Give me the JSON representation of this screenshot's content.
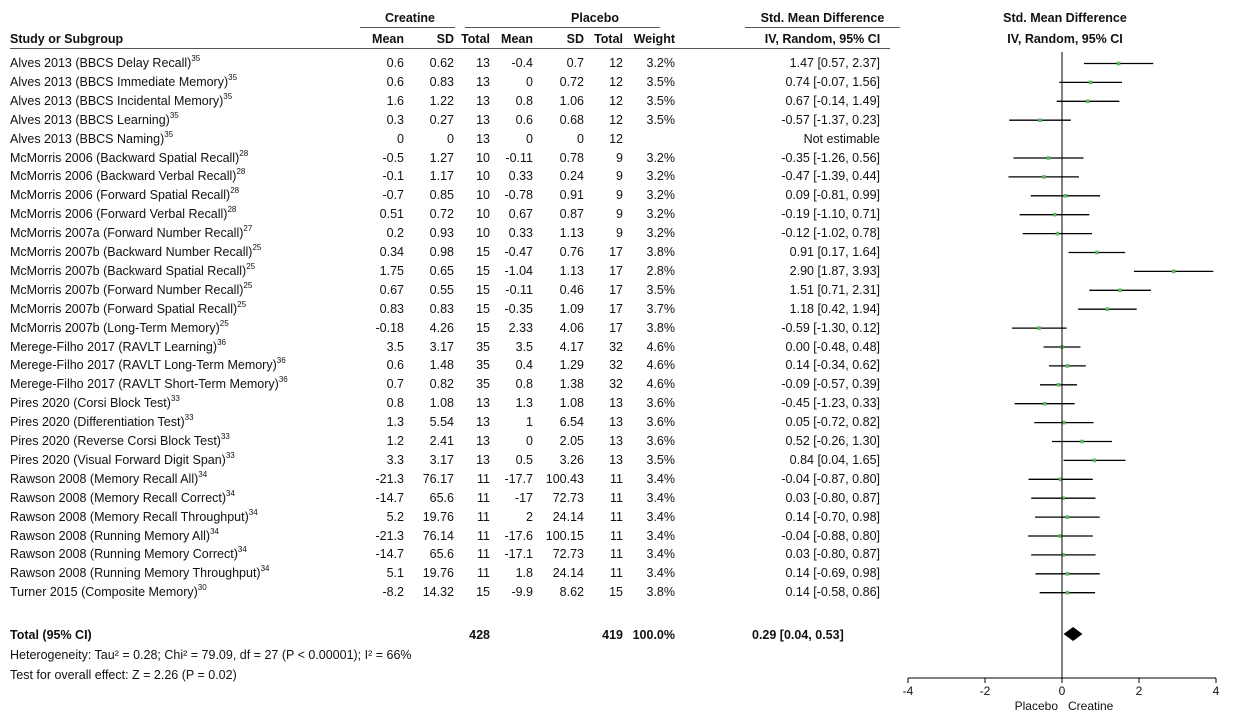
{
  "header": {
    "group_creatine": "Creatine",
    "group_placebo": "Placebo",
    "smd_title": "Std. Mean Difference",
    "smd_title_plot": "Std. Mean Difference",
    "col_study": "Study or Subgroup",
    "col_mean1": "Mean",
    "col_sd1": "SD",
    "col_total1": "Total",
    "col_mean2": "Mean",
    "col_sd2": "SD",
    "col_total2": "Total",
    "col_weight": "Weight",
    "col_ci": "IV, Random, 95% CI",
    "col_ci_plot": "IV, Random, 95% CI"
  },
  "total": {
    "label": "Total (95% CI)",
    "n1": "428",
    "n2": "419",
    "weight": "100.0%",
    "ci": "0.29 [0.04, 0.53]"
  },
  "heterogeneity": "Heterogeneity: Tau² = 0.28; Chi² = 79.09, df = 27 (P < 0.00001); I² = 66%",
  "overall_effect": "Test for overall effect: Z = 2.26 (P = 0.02)",
  "colors": {
    "point": "#5cb85c",
    "line": "#000000",
    "diamond": "#000000"
  },
  "chart_data": {
    "type": "forest",
    "xlim": [
      -4,
      4
    ],
    "xticks": [
      "-4",
      "-2",
      "0",
      "2",
      "4"
    ],
    "xlabel_left": "Placebo",
    "xlabel_right": "Creatine",
    "summary": {
      "est": 0.29,
      "lo": 0.04,
      "hi": 0.53
    },
    "rows": [
      {
        "study": "Alves 2013 (BBCS Delay Recall)",
        "ref": "35",
        "m1": "0.6",
        "sd1": "0.62",
        "n1": "13",
        "m2": "-0.4",
        "sd2": "0.7",
        "n2": "12",
        "w": "3.2%",
        "ci": "1.47 [0.57, 2.37]",
        "est": 1.47,
        "lo": 0.57,
        "hi": 2.37
      },
      {
        "study": "Alves 2013 (BBCS Immediate Memory)",
        "ref": "35",
        "m1": "0.6",
        "sd1": "0.83",
        "n1": "13",
        "m2": "0",
        "sd2": "0.72",
        "n2": "12",
        "w": "3.5%",
        "ci": "0.74 [-0.07, 1.56]",
        "est": 0.74,
        "lo": -0.07,
        "hi": 1.56
      },
      {
        "study": "Alves 2013 (BBCS Incidental Memory)",
        "ref": "35",
        "m1": "1.6",
        "sd1": "1.22",
        "n1": "13",
        "m2": "0.8",
        "sd2": "1.06",
        "n2": "12",
        "w": "3.5%",
        "ci": "0.67 [-0.14, 1.49]",
        "est": 0.67,
        "lo": -0.14,
        "hi": 1.49
      },
      {
        "study": "Alves 2013 (BBCS Learning)",
        "ref": "35",
        "m1": "0.3",
        "sd1": "0.27",
        "n1": "13",
        "m2": "0.6",
        "sd2": "0.68",
        "n2": "12",
        "w": "3.5%",
        "ci": "-0.57 [-1.37, 0.23]",
        "est": -0.57,
        "lo": -1.37,
        "hi": 0.23
      },
      {
        "study": "Alves 2013 (BBCS Naming)",
        "ref": "35",
        "m1": "0",
        "sd1": "0",
        "n1": "13",
        "m2": "0",
        "sd2": "0",
        "n2": "12",
        "w": "",
        "ci": "Not estimable",
        "est": null,
        "lo": null,
        "hi": null
      },
      {
        "study": "McMorris 2006 (Backward Spatial Recall)",
        "ref": "28",
        "m1": "-0.5",
        "sd1": "1.27",
        "n1": "10",
        "m2": "-0.11",
        "sd2": "0.78",
        "n2": "9",
        "w": "3.2%",
        "ci": "-0.35 [-1.26, 0.56]",
        "est": -0.35,
        "lo": -1.26,
        "hi": 0.56
      },
      {
        "study": "McMorris 2006 (Backward Verbal Recall)",
        "ref": "28",
        "m1": "-0.1",
        "sd1": "1.17",
        "n1": "10",
        "m2": "0.33",
        "sd2": "0.24",
        "n2": "9",
        "w": "3.2%",
        "ci": "-0.47 [-1.39, 0.44]",
        "est": -0.47,
        "lo": -1.39,
        "hi": 0.44
      },
      {
        "study": "McMorris 2006 (Forward Spatial Recall)",
        "ref": "28",
        "m1": "-0.7",
        "sd1": "0.85",
        "n1": "10",
        "m2": "-0.78",
        "sd2": "0.91",
        "n2": "9",
        "w": "3.2%",
        "ci": "0.09 [-0.81, 0.99]",
        "est": 0.09,
        "lo": -0.81,
        "hi": 0.99
      },
      {
        "study": "McMorris 2006 (Forward Verbal Recall)",
        "ref": "28",
        "m1": "0.51",
        "sd1": "0.72",
        "n1": "10",
        "m2": "0.67",
        "sd2": "0.87",
        "n2": "9",
        "w": "3.2%",
        "ci": "-0.19 [-1.10, 0.71]",
        "est": -0.19,
        "lo": -1.1,
        "hi": 0.71
      },
      {
        "study": "McMorris 2007a (Forward Number Recall)",
        "ref": "27",
        "m1": "0.2",
        "sd1": "0.93",
        "n1": "10",
        "m2": "0.33",
        "sd2": "1.13",
        "n2": "9",
        "w": "3.2%",
        "ci": "-0.12 [-1.02, 0.78]",
        "est": -0.12,
        "lo": -1.02,
        "hi": 0.78
      },
      {
        "study": "McMorris 2007b (Backward Number Recall)",
        "ref": "25",
        "m1": "0.34",
        "sd1": "0.98",
        "n1": "15",
        "m2": "-0.47",
        "sd2": "0.76",
        "n2": "17",
        "w": "3.8%",
        "ci": "0.91 [0.17, 1.64]",
        "est": 0.91,
        "lo": 0.17,
        "hi": 1.64
      },
      {
        "study": "McMorris 2007b (Backward Spatial Recall)",
        "ref": "25",
        "m1": "1.75",
        "sd1": "0.65",
        "n1": "15",
        "m2": "-1.04",
        "sd2": "1.13",
        "n2": "17",
        "w": "2.8%",
        "ci": "2.90 [1.87, 3.93]",
        "est": 2.9,
        "lo": 1.87,
        "hi": 3.93
      },
      {
        "study": "McMorris 2007b (Forward Number Recall)",
        "ref": "25",
        "m1": "0.67",
        "sd1": "0.55",
        "n1": "15",
        "m2": "-0.11",
        "sd2": "0.46",
        "n2": "17",
        "w": "3.5%",
        "ci": "1.51 [0.71, 2.31]",
        "est": 1.51,
        "lo": 0.71,
        "hi": 2.31
      },
      {
        "study": "McMorris 2007b (Forward Spatial Recall)",
        "ref": "25",
        "m1": "0.83",
        "sd1": "0.83",
        "n1": "15",
        "m2": "-0.35",
        "sd2": "1.09",
        "n2": "17",
        "w": "3.7%",
        "ci": "1.18 [0.42, 1.94]",
        "est": 1.18,
        "lo": 0.42,
        "hi": 1.94
      },
      {
        "study": "McMorris 2007b (Long-Term Memory)",
        "ref": "25",
        "m1": "-0.18",
        "sd1": "4.26",
        "n1": "15",
        "m2": "2.33",
        "sd2": "4.06",
        "n2": "17",
        "w": "3.8%",
        "ci": "-0.59 [-1.30, 0.12]",
        "est": -0.59,
        "lo": -1.3,
        "hi": 0.12
      },
      {
        "study": "Merege-Filho 2017 (RAVLT Learning)",
        "ref": "36",
        "m1": "3.5",
        "sd1": "3.17",
        "n1": "35",
        "m2": "3.5",
        "sd2": "4.17",
        "n2": "32",
        "w": "4.6%",
        "ci": "0.00 [-0.48, 0.48]",
        "est": 0.0,
        "lo": -0.48,
        "hi": 0.48
      },
      {
        "study": "Merege-Filho 2017 (RAVLT Long-Term Memory)",
        "ref": "36",
        "m1": "0.6",
        "sd1": "1.48",
        "n1": "35",
        "m2": "0.4",
        "sd2": "1.29",
        "n2": "32",
        "w": "4.6%",
        "ci": "0.14 [-0.34, 0.62]",
        "est": 0.14,
        "lo": -0.34,
        "hi": 0.62
      },
      {
        "study": "Merege-Filho 2017 (RAVLT Short-Term Memory)",
        "ref": "36",
        "m1": "0.7",
        "sd1": "0.82",
        "n1": "35",
        "m2": "0.8",
        "sd2": "1.38",
        "n2": "32",
        "w": "4.6%",
        "ci": "-0.09 [-0.57, 0.39]",
        "est": -0.09,
        "lo": -0.57,
        "hi": 0.39
      },
      {
        "study": "Pires 2020 (Corsi Block Test)",
        "ref": "33",
        "m1": "0.8",
        "sd1": "1.08",
        "n1": "13",
        "m2": "1.3",
        "sd2": "1.08",
        "n2": "13",
        "w": "3.6%",
        "ci": "-0.45 [-1.23, 0.33]",
        "est": -0.45,
        "lo": -1.23,
        "hi": 0.33
      },
      {
        "study": "Pires 2020 (Differentiation Test)",
        "ref": "33",
        "m1": "1.3",
        "sd1": "5.54",
        "n1": "13",
        "m2": "1",
        "sd2": "6.54",
        "n2": "13",
        "w": "3.6%",
        "ci": "0.05 [-0.72, 0.82]",
        "est": 0.05,
        "lo": -0.72,
        "hi": 0.82
      },
      {
        "study": "Pires 2020 (Reverse Corsi Block Test)",
        "ref": "33",
        "m1": "1.2",
        "sd1": "2.41",
        "n1": "13",
        "m2": "0",
        "sd2": "2.05",
        "n2": "13",
        "w": "3.6%",
        "ci": "0.52 [-0.26, 1.30]",
        "est": 0.52,
        "lo": -0.26,
        "hi": 1.3
      },
      {
        "study": "Pires 2020 (Visual Forward Digit Span)",
        "ref": "33",
        "m1": "3.3",
        "sd1": "3.17",
        "n1": "13",
        "m2": "0.5",
        "sd2": "3.26",
        "n2": "13",
        "w": "3.5%",
        "ci": "0.84 [0.04, 1.65]",
        "est": 0.84,
        "lo": 0.04,
        "hi": 1.65
      },
      {
        "study": "Rawson 2008 (Memory Recall All)",
        "ref": "34",
        "m1": "-21.3",
        "sd1": "76.17",
        "n1": "11",
        "m2": "-17.7",
        "sd2": "100.43",
        "n2": "11",
        "w": "3.4%",
        "ci": "-0.04 [-0.87, 0.80]",
        "est": -0.04,
        "lo": -0.87,
        "hi": 0.8
      },
      {
        "study": "Rawson 2008 (Memory Recall Correct)",
        "ref": "34",
        "m1": "-14.7",
        "sd1": "65.6",
        "n1": "11",
        "m2": "-17",
        "sd2": "72.73",
        "n2": "11",
        "w": "3.4%",
        "ci": "0.03 [-0.80, 0.87]",
        "est": 0.03,
        "lo": -0.8,
        "hi": 0.87
      },
      {
        "study": "Rawson 2008 (Memory Recall Throughput)",
        "ref": "34",
        "m1": "5.2",
        "sd1": "19.76",
        "n1": "11",
        "m2": "2",
        "sd2": "24.14",
        "n2": "11",
        "w": "3.4%",
        "ci": "0.14 [-0.70, 0.98]",
        "est": 0.14,
        "lo": -0.7,
        "hi": 0.98
      },
      {
        "study": "Rawson 2008 (Running Memory All)",
        "ref": "34",
        "m1": "-21.3",
        "sd1": "76.14",
        "n1": "11",
        "m2": "-17.6",
        "sd2": "100.15",
        "n2": "11",
        "w": "3.4%",
        "ci": "-0.04 [-0.88, 0.80]",
        "est": -0.04,
        "lo": -0.88,
        "hi": 0.8
      },
      {
        "study": "Rawson 2008 (Running Memory Correct)",
        "ref": "34",
        "m1": "-14.7",
        "sd1": "65.6",
        "n1": "11",
        "m2": "-17.1",
        "sd2": "72.73",
        "n2": "11",
        "w": "3.4%",
        "ci": "0.03 [-0.80, 0.87]",
        "est": 0.03,
        "lo": -0.8,
        "hi": 0.87
      },
      {
        "study": "Rawson 2008 (Running Memory Throughput)",
        "ref": "34",
        "m1": "5.1",
        "sd1": "19.76",
        "n1": "11",
        "m2": "1.8",
        "sd2": "24.14",
        "n2": "11",
        "w": "3.4%",
        "ci": "0.14 [-0.69, 0.98]",
        "est": 0.14,
        "lo": -0.69,
        "hi": 0.98
      },
      {
        "study": "Turner 2015 (Composite Memory)",
        "ref": "30",
        "m1": "-8.2",
        "sd1": "14.32",
        "n1": "15",
        "m2": "-9.9",
        "sd2": "8.62",
        "n2": "15",
        "w": "3.8%",
        "ci": "0.14 [-0.58, 0.86]",
        "est": 0.14,
        "lo": -0.58,
        "hi": 0.86
      }
    ]
  }
}
